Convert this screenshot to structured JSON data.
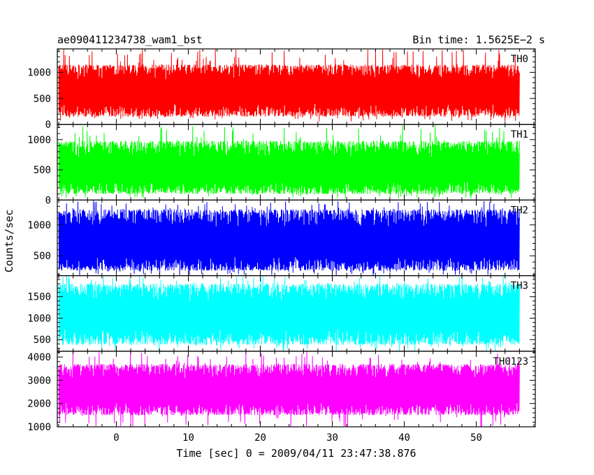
{
  "header": {
    "title": "ae090411234738_wam1_bst",
    "bin_time": "Bin time: 1.5625E−2 s"
  },
  "chart_data": {
    "type": "line",
    "title": "ae090411234738_wam1_bst",
    "xlabel": "Time [sec] 0 = 2009/04/11 23:47:38.876",
    "ylabel": "Counts/sec",
    "xlim": [
      -8.2,
      58.2
    ],
    "data_x_range": [
      -8.0,
      56.0
    ],
    "x_ticks": [
      0,
      10,
      20,
      30,
      40,
      50
    ],
    "grid": false,
    "series": [
      {
        "name": "TH0",
        "color": "#ff0000",
        "ylim": [
          0,
          1450
        ],
        "y_ticks": [
          0,
          500,
          1000
        ],
        "mean": 620,
        "typical_range": [
          150,
          1150
        ],
        "max": 1450,
        "min": 60
      },
      {
        "name": "TH1",
        "color": "#00ff00",
        "ylim": [
          0,
          1250
        ],
        "y_ticks": [
          0,
          500,
          1000
        ],
        "mean": 470,
        "typical_range": [
          100,
          980
        ],
        "max": 1250,
        "min": 30
      },
      {
        "name": "TH2",
        "color": "#0000ff",
        "ylim": [
          180,
          1400
        ],
        "y_ticks": [
          500,
          1000
        ],
        "mean": 700,
        "typical_range": [
          260,
          1250
        ],
        "max": 1400,
        "min": 180
      },
      {
        "name": "TH3",
        "color": "#00ffff",
        "ylim": [
          230,
          1990
        ],
        "y_ticks": [
          500,
          1000,
          1500
        ],
        "mean": 1050,
        "typical_range": [
          380,
          1800
        ],
        "max": 1990,
        "min": 230
      },
      {
        "name": "TH0123",
        "color": "#ff00ff",
        "ylim": [
          1000,
          4250
        ],
        "y_ticks": [
          1000,
          2000,
          3000,
          4000
        ],
        "mean": 2500,
        "typical_range": [
          1500,
          3700
        ],
        "max": 4250,
        "min": 1000
      }
    ]
  }
}
